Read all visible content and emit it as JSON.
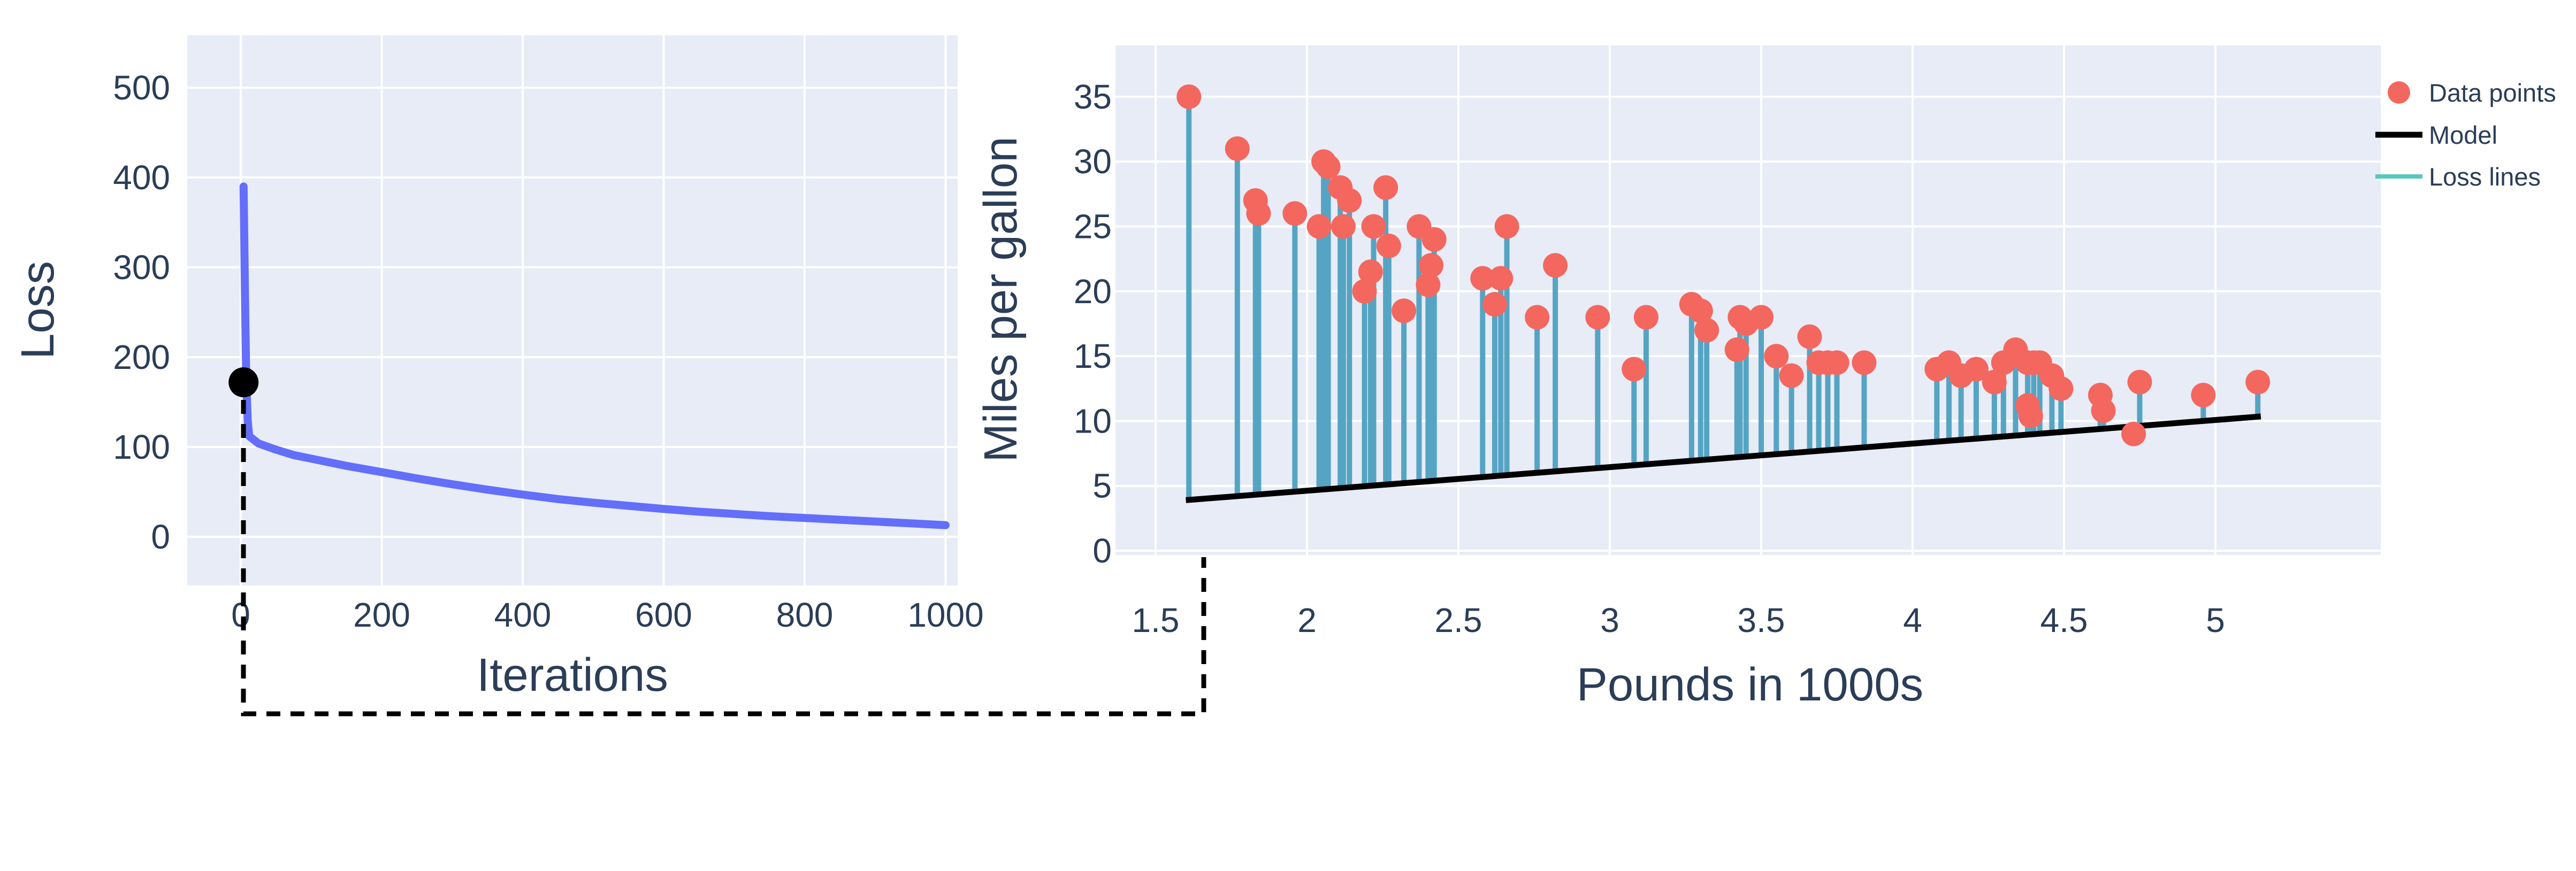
{
  "colors": {
    "page_bg": "#ffffff",
    "plot_bg": "#E7ECF6",
    "grid": "#ffffff",
    "text": "#2B3D57",
    "loss_curve": "#636EFA",
    "marker": "#000000",
    "data_point": "#F4675F",
    "loss_line": "#55A4C4",
    "model_line": "#000000",
    "legend_loss_swatch": "#57C8BE",
    "connector": "#000000"
  },
  "chart_data": [
    {
      "id": "loss-curve-chart",
      "type": "line",
      "title": "",
      "xlabel": "Iterations",
      "ylabel": "Loss",
      "grid": true,
      "x_ticks": [
        "0",
        "200",
        "400",
        "600",
        "800",
        "1000"
      ],
      "x_tick_values": [
        0,
        200,
        400,
        600,
        800,
        1000
      ],
      "y_ticks": [
        "0",
        "100",
        "200",
        "300",
        "400",
        "500"
      ],
      "y_tick_values": [
        0,
        100,
        200,
        300,
        400,
        500
      ],
      "xlim": [
        -76,
        1017
      ],
      "ylim": [
        -54,
        559
      ],
      "series": [
        {
          "name": "loss",
          "x": [
            4,
            5,
            6,
            7,
            8,
            10,
            12,
            25,
            50,
            75,
            100,
            150,
            200,
            250,
            300,
            350,
            400,
            450,
            500,
            550,
            600,
            650,
            700,
            750,
            800,
            850,
            900,
            950,
            1000
          ],
          "y": [
            390,
            330,
            270,
            215,
            170,
            128,
            112,
            104,
            97,
            91,
            87,
            79,
            72,
            65,
            58.5,
            52.5,
            47,
            42,
            38,
            34.5,
            31,
            28,
            25.5,
            23,
            21,
            19,
            17,
            15,
            13
          ]
        }
      ],
      "marker": {
        "x": 4,
        "y": 172
      }
    },
    {
      "id": "model-fit-chart",
      "type": "scatter",
      "title": "",
      "xlabel": "Pounds in 1000s",
      "ylabel": "Miles per gallon",
      "grid": true,
      "x_ticks": [
        "1.5",
        "2",
        "2.5",
        "3",
        "3.5",
        "4",
        "4.5",
        "5"
      ],
      "x_tick_values": [
        1.5,
        2,
        2.5,
        3,
        3.5,
        4,
        4.5,
        5
      ],
      "y_ticks": [
        "0",
        "5",
        "10",
        "15",
        "20",
        "25",
        "30",
        "35"
      ],
      "y_tick_values": [
        0,
        5,
        10,
        15,
        20,
        25,
        30,
        35
      ],
      "xlim": [
        1.38,
        5.57
      ],
      "ylim": [
        -0.3,
        39.1
      ],
      "points": [
        [
          1.61,
          35
        ],
        [
          1.77,
          31
        ],
        [
          1.83,
          27
        ],
        [
          1.84,
          26
        ],
        [
          1.96,
          26
        ],
        [
          2.04,
          25
        ],
        [
          2.055,
          30
        ],
        [
          2.07,
          29.6
        ],
        [
          2.11,
          28
        ],
        [
          2.12,
          25
        ],
        [
          2.14,
          27
        ],
        [
          2.19,
          20
        ],
        [
          2.21,
          21.5
        ],
        [
          2.22,
          25
        ],
        [
          2.26,
          28
        ],
        [
          2.27,
          23.5
        ],
        [
          2.32,
          18.5
        ],
        [
          2.37,
          25
        ],
        [
          2.4,
          20.5
        ],
        [
          2.41,
          22
        ],
        [
          2.42,
          24
        ],
        [
          2.58,
          21
        ],
        [
          2.62,
          19
        ],
        [
          2.64,
          21
        ],
        [
          2.66,
          25
        ],
        [
          2.76,
          18
        ],
        [
          2.82,
          22
        ],
        [
          2.96,
          18
        ],
        [
          3.08,
          14
        ],
        [
          3.12,
          18
        ],
        [
          3.27,
          19
        ],
        [
          3.3,
          18.5
        ],
        [
          3.32,
          17
        ],
        [
          3.42,
          15.5
        ],
        [
          3.43,
          18
        ],
        [
          3.45,
          17.5
        ],
        [
          3.5,
          18
        ],
        [
          3.55,
          15
        ],
        [
          3.6,
          13.5
        ],
        [
          3.66,
          16.5
        ],
        [
          3.69,
          14.5
        ],
        [
          3.72,
          14.5
        ],
        [
          3.75,
          14.5
        ],
        [
          3.84,
          14.5
        ],
        [
          4.08,
          14
        ],
        [
          4.12,
          14.5
        ],
        [
          4.16,
          13.5
        ],
        [
          4.21,
          14
        ],
        [
          4.27,
          13
        ],
        [
          4.3,
          14.5
        ],
        [
          4.34,
          15.5
        ],
        [
          4.38,
          14.5
        ],
        [
          4.38,
          11.2
        ],
        [
          4.39,
          10.4
        ],
        [
          4.4,
          14.5
        ],
        [
          4.42,
          14.5
        ],
        [
          4.46,
          13.5
        ],
        [
          4.49,
          12.5
        ],
        [
          4.62,
          12
        ],
        [
          4.63,
          10.8
        ],
        [
          4.73,
          9
        ],
        [
          4.75,
          13
        ],
        [
          4.96,
          12
        ],
        [
          5.14,
          13
        ]
      ],
      "model_line": {
        "x0": 1.6,
        "y0": 3.9,
        "x1": 5.15,
        "y1": 10.35
      },
      "legend": {
        "position": "right-top",
        "items": [
          {
            "label": "Data points",
            "swatch": "dot",
            "color": "#F4675F"
          },
          {
            "label": "Model",
            "swatch": "line",
            "color": "#000000"
          },
          {
            "label": "Loss lines",
            "swatch": "line",
            "color": "#57C8BE"
          }
        ]
      }
    }
  ],
  "connector": {
    "style": "dashed",
    "arrow": "up",
    "color": "#000000"
  }
}
